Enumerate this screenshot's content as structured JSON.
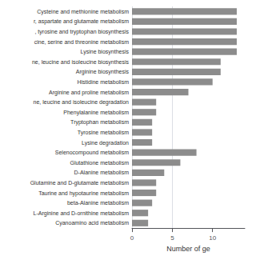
{
  "chart_data": {
    "type": "bar",
    "orientation": "horizontal",
    "categories": [
      "Cysteine and methionine metabolism",
      "r, aspartate and glutamate metabolism",
      ", tyrosine and tryptophan biosynthesis",
      "cine, serine and threonine metabolism",
      "Lysine biosynthesis",
      "ne, leucine and isoleucine biosynthesis",
      "Arginine biosynthesis",
      "Histidine metabolism",
      "Arginine and proline metabolism",
      "ne, leucine and isoleucine degradation",
      "Phenylalanine metabolism",
      "Tryptophan metabolism",
      "Tyrosine metabolism",
      "Lysine degradation",
      "Selenocompound metabolism",
      "Glutathione metabolism",
      "D-Alanine metabolism",
      "Glutamine and D-glutamate metabolism",
      "Taurine and hypotaurine metabolism",
      "beta-Alanine metabolism",
      "L-Arginine and D-ornithine metabolism",
      "Cyanoamino acid metabolism"
    ],
    "values": [
      13,
      13,
      13,
      13,
      13,
      11,
      11,
      10,
      7,
      3,
      3,
      2.5,
      2.5,
      2.5,
      8,
      6,
      4,
      3,
      3,
      2.5,
      2,
      2
    ],
    "color": "#8c8c8c",
    "xlabel": "Number of ge",
    "xlim": [
      0,
      14
    ],
    "xticks": [
      0,
      5,
      10
    ],
    "grid": true
  }
}
